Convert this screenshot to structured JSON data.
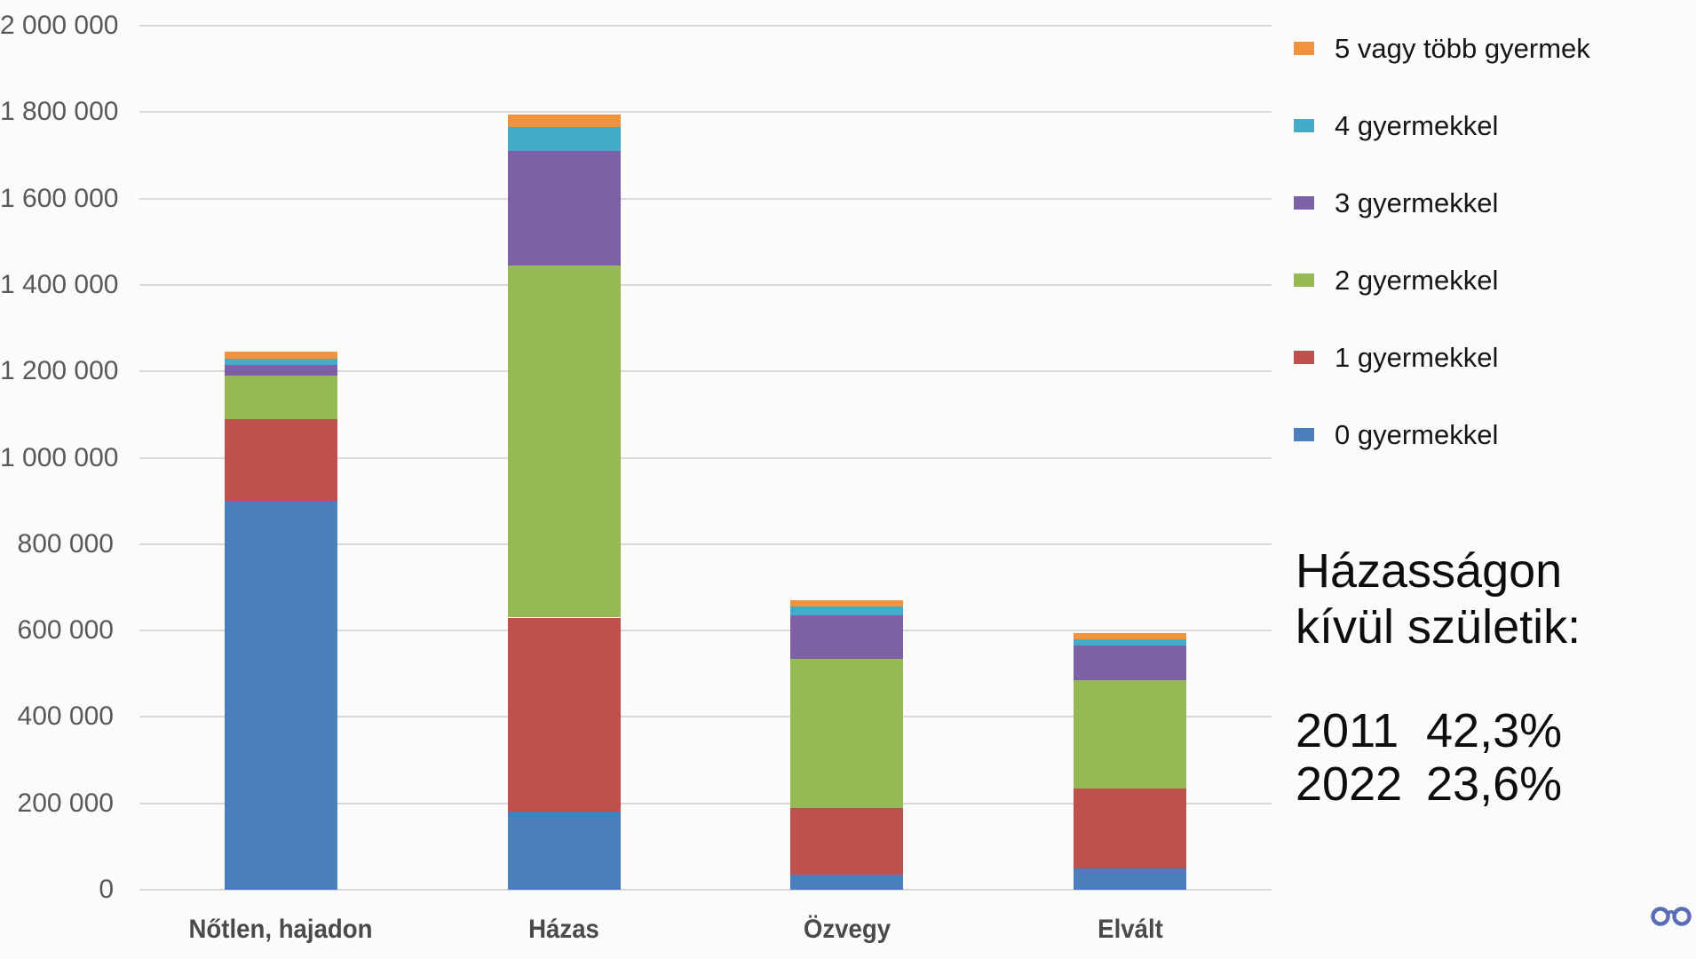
{
  "chart_data": {
    "type": "bar",
    "stacked": true,
    "categories": [
      "Nőtlen, hajadon",
      "Házas",
      "Özvegy",
      "Elvált"
    ],
    "series": [
      {
        "name": "0 gyermekkel",
        "color": "#4b7ebc",
        "values": [
          900000,
          180000,
          35000,
          50000
        ]
      },
      {
        "name": "1 gyermekkel",
        "color": "#c0504d",
        "values": [
          190000,
          450000,
          155000,
          185000
        ]
      },
      {
        "name": "2 gyermekkel",
        "color": "#95ba55",
        "values": [
          100000,
          815000,
          345000,
          250000
        ]
      },
      {
        "name": "3 gyermekkel",
        "color": "#7d60a6",
        "values": [
          25000,
          265000,
          100000,
          80000
        ]
      },
      {
        "name": "4 gyermekkel",
        "color": "#44acc8",
        "values": [
          15000,
          55000,
          20000,
          15000
        ]
      },
      {
        "name": "5 vagy több gyermek",
        "color": "#f2923d",
        "values": [
          15000,
          30000,
          15000,
          15000
        ]
      }
    ],
    "ylim": [
      0,
      2000000
    ],
    "y_ticks": [
      {
        "value": 0,
        "label": "0"
      },
      {
        "value": 200000,
        "label": "200 000"
      },
      {
        "value": 400000,
        "label": "400 000"
      },
      {
        "value": 600000,
        "label": "600 000"
      },
      {
        "value": 800000,
        "label": "800 000"
      },
      {
        "value": 1000000,
        "label": "1 000 000"
      },
      {
        "value": 1200000,
        "label": "1 200 000"
      },
      {
        "value": 1400000,
        "label": "1 400 000"
      },
      {
        "value": 1600000,
        "label": "1 600 000"
      },
      {
        "value": 1800000,
        "label": "1 800 000"
      },
      {
        "value": 2000000,
        "label": "2 000 000"
      }
    ],
    "grid": true,
    "legend_position": "right",
    "title": "",
    "xlabel": "",
    "ylabel": ""
  },
  "legend": {
    "items": [
      {
        "label": "5 vagy több gyermek",
        "color": "#f2923d"
      },
      {
        "label": "4 gyermekkel",
        "color": "#44acc8"
      },
      {
        "label": "3 gyermekkel",
        "color": "#7d60a6"
      },
      {
        "label": "2 gyermekkel",
        "color": "#95ba55"
      },
      {
        "label": "1 gyermekkel",
        "color": "#c0504d"
      },
      {
        "label": "0 gyermekkel",
        "color": "#4b7ebc"
      }
    ]
  },
  "annotation": {
    "line1": "Házasságon",
    "line2": "kívül születik:",
    "rows": [
      {
        "year": "2011",
        "value": "42,3%"
      },
      {
        "year": "2022",
        "value": "23,6%"
      }
    ]
  },
  "icons": {
    "glasses_color": "#5c6cb8"
  }
}
